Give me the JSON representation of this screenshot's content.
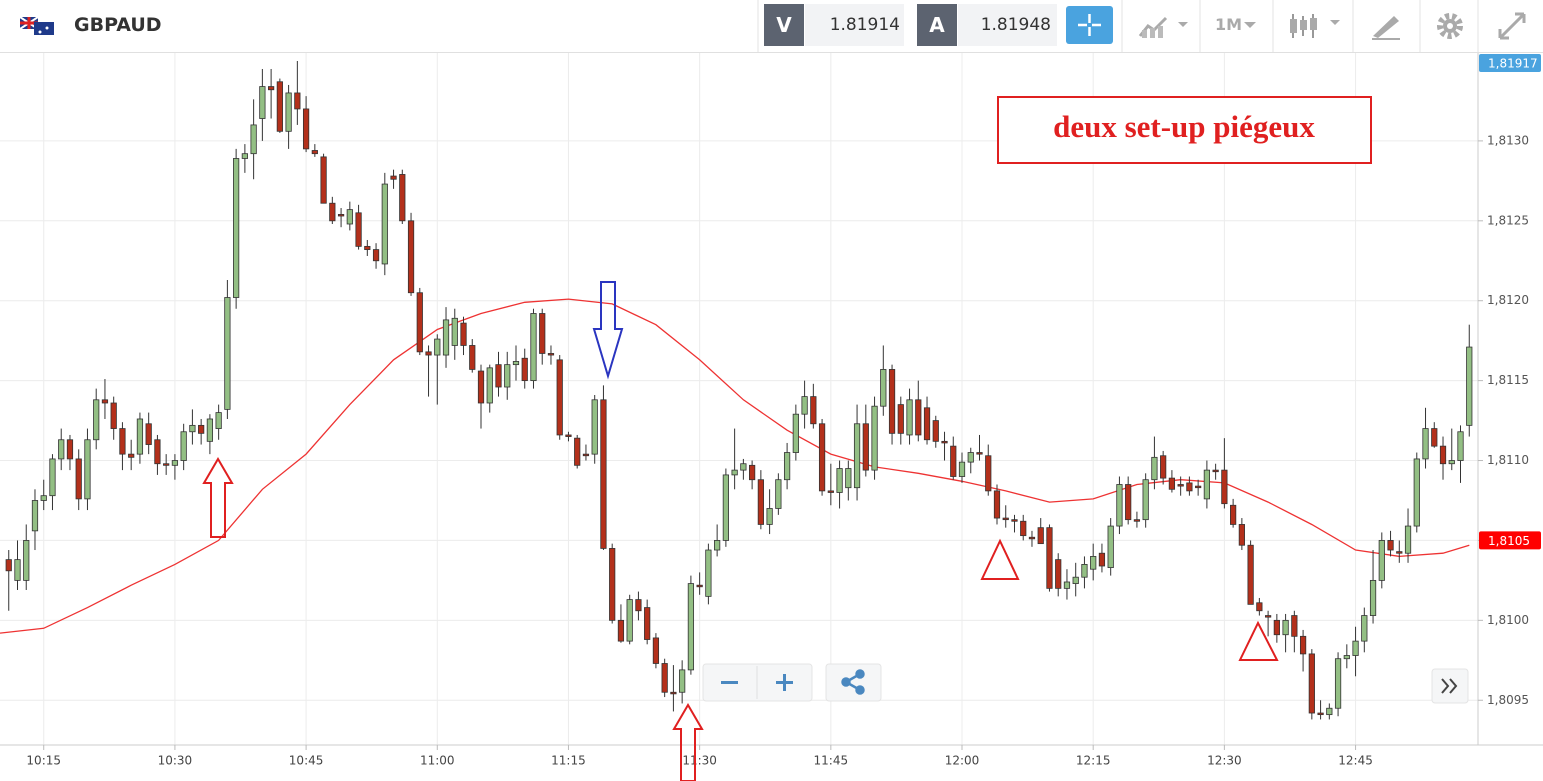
{
  "header": {
    "symbol": "GBPAUD",
    "bid_label": "V",
    "bid": 1.81914,
    "ask_label": "A",
    "ask": 1.81948,
    "timeframe": "1M"
  },
  "chart_data": {
    "type": "candlestick",
    "annotation": "deux set-up piégeux",
    "x": [
      "10:11",
      "10:12",
      "10:13",
      "10:14",
      "10:15",
      "10:16",
      "10:17",
      "10:18",
      "10:19",
      "10:20",
      "10:21",
      "10:22",
      "10:23",
      "10:24",
      "10:25",
      "10:26",
      "10:27",
      "10:28",
      "10:29",
      "10:30",
      "10:31",
      "10:32",
      "10:33",
      "10:34",
      "10:35",
      "10:36",
      "10:37",
      "10:38",
      "10:39",
      "10:40",
      "10:41",
      "10:42",
      "10:43",
      "10:44",
      "10:45",
      "10:46",
      "10:47",
      "10:48",
      "10:49",
      "10:50",
      "10:51",
      "10:52",
      "10:53",
      "10:54",
      "10:55",
      "10:56",
      "10:57",
      "10:58",
      "10:59",
      "11:00",
      "11:01",
      "11:02",
      "11:03",
      "11:04",
      "11:05",
      "11:06",
      "11:07",
      "11:08",
      "11:09",
      "11:10",
      "11:11",
      "11:12",
      "11:13",
      "11:14",
      "11:15",
      "11:16",
      "11:17",
      "11:18",
      "11:19",
      "11:20",
      "11:21",
      "11:22",
      "11:23",
      "11:24",
      "11:25",
      "11:26",
      "11:27",
      "11:28",
      "11:29",
      "11:30",
      "11:31",
      "11:32",
      "11:33",
      "11:34",
      "11:35",
      "11:36",
      "11:37",
      "11:38",
      "11:39",
      "11:40",
      "11:41",
      "11:42",
      "11:43",
      "11:44",
      "11:45",
      "11:46",
      "11:47",
      "11:48",
      "11:49",
      "11:50",
      "11:51",
      "11:52",
      "11:53",
      "11:54",
      "11:55",
      "11:56",
      "11:57",
      "11:58",
      "11:59",
      "12:00",
      "12:01",
      "12:02",
      "12:03",
      "12:04",
      "12:05",
      "12:06",
      "12:07",
      "12:08",
      "12:09",
      "12:10",
      "12:11",
      "12:12",
      "12:13",
      "12:14",
      "12:15",
      "12:16",
      "12:17",
      "12:18",
      "12:19",
      "12:20",
      "12:21",
      "12:22",
      "12:23",
      "12:24",
      "12:25",
      "12:26",
      "12:27",
      "12:28",
      "12:29",
      "12:30",
      "12:31",
      "12:32",
      "12:33",
      "12:34",
      "12:35",
      "12:36",
      "12:37",
      "12:38",
      "12:39",
      "12:40",
      "12:41",
      "12:42",
      "12:43",
      "12:44",
      "12:45",
      "12:46",
      "12:47",
      "12:48",
      "12:49",
      "12:50",
      "12:51",
      "12:52",
      "12:53",
      "12:54",
      "12:55",
      "12:56",
      "12:57",
      "12:58"
    ],
    "open": [
      1.81038,
      1.81025,
      1.81025,
      1.81056,
      1.81075,
      1.81078,
      1.81101,
      1.81113,
      1.81101,
      1.81076,
      1.81113,
      1.81138,
      1.81136,
      1.8112,
      1.81104,
      1.81104,
      1.81123,
      1.81113,
      1.81098,
      1.81097,
      1.811,
      1.81118,
      1.81122,
      1.81112,
      1.8112,
      1.81132,
      1.81202,
      1.81289,
      1.81292,
      1.81314,
      1.81334,
      1.81337,
      1.81306,
      1.8133,
      1.8132,
      1.81294,
      1.8129,
      1.81261,
      1.81254,
      1.81248,
      1.81255,
      1.81234,
      1.81232,
      1.81223,
      1.81278,
      1.81279,
      1.8125,
      1.81205,
      1.81168,
      1.81166,
      1.81166,
      1.81172,
      1.81186,
      1.81172,
      1.81156,
      1.81136,
      1.8116,
      1.81146,
      1.8116,
      1.81164,
      1.8115,
      1.81192,
      1.81167,
      1.81163,
      1.81116,
      1.81114,
      1.81104,
      1.81104,
      1.81138,
      1.81045,
      1.81,
      1.80987,
      1.81013,
      1.81008,
      1.80989,
      1.80973,
      1.80955,
      1.80955,
      1.80969,
      1.81022,
      1.81015,
      1.81044,
      1.8105,
      1.81091,
      1.81094,
      1.81097,
      1.81088,
      1.8106,
      1.8107,
      1.81088,
      1.81105,
      1.81129,
      1.8114,
      1.81123,
      1.81081,
      1.8108,
      1.81083,
      1.81083,
      1.81123,
      1.81094,
      1.81134,
      1.81157,
      1.81135,
      1.81116,
      1.81138,
      1.81133,
      1.81125,
      1.81112,
      1.81109,
      1.8109,
      1.81099,
      1.81105,
      1.81103,
      1.81081,
      1.81064,
      1.81063,
      1.81062,
      1.81052,
      1.81058,
      1.81058,
      1.81038,
      1.8102,
      1.81023,
      1.81027,
      1.81032,
      1.81042,
      1.81033,
      1.81059,
      1.81085,
      1.81063,
      1.81063,
      1.81088,
      1.81103,
      1.81089,
      1.81085,
      1.81086,
      1.81084,
      1.81076,
      1.81094,
      1.81094,
      1.81072,
      1.8106,
      1.81047,
      1.81011,
      1.81003,
      1.81,
      1.80991,
      1.81003,
      1.8099,
      1.80979,
      1.80942,
      1.80941,
      1.80945,
      1.80976,
      1.80978,
      1.80987,
      1.81003,
      1.81025,
      1.8105,
      1.81043,
      1.81042,
      1.81059,
      1.81101,
      1.8112,
      1.81109,
      1.81098,
      1.811,
      1.81122
    ],
    "high": [
      1.81044,
      1.8105,
      1.8106,
      1.81082,
      1.81088,
      1.81104,
      1.8112,
      1.81116,
      1.81107,
      1.8112,
      1.81145,
      1.81151,
      1.8114,
      1.81124,
      1.81113,
      1.8113,
      1.8113,
      1.81116,
      1.81104,
      1.81104,
      1.81123,
      1.81132,
      1.81126,
      1.81129,
      1.81135,
      1.81213,
      1.81295,
      1.81298,
      1.81326,
      1.81345,
      1.81345,
      1.81339,
      1.81335,
      1.8135,
      1.81328,
      1.81298,
      1.81292,
      1.81265,
      1.81258,
      1.81262,
      1.8126,
      1.81238,
      1.81236,
      1.8128,
      1.81282,
      1.81282,
      1.81255,
      1.81208,
      1.81172,
      1.81179,
      1.81196,
      1.81195,
      1.8119,
      1.81176,
      1.8116,
      1.8116,
      1.81168,
      1.81168,
      1.81172,
      1.8117,
      1.81195,
      1.81195,
      1.81172,
      1.81166,
      1.81118,
      1.81116,
      1.8111,
      1.81141,
      1.81147,
      1.81048,
      1.8101,
      1.81016,
      1.81018,
      1.81013,
      1.80992,
      1.80976,
      1.80972,
      1.80975,
      1.81028,
      1.8103,
      1.81048,
      1.8106,
      1.81095,
      1.8112,
      1.81101,
      1.811,
      1.81094,
      1.81082,
      1.81092,
      1.81111,
      1.81135,
      1.8115,
      1.81148,
      1.81126,
      1.81098,
      1.811,
      1.811,
      1.81135,
      1.81135,
      1.8114,
      1.81172,
      1.8116,
      1.8114,
      1.81145,
      1.8115,
      1.8114,
      1.81128,
      1.81118,
      1.81115,
      1.81105,
      1.81108,
      1.81116,
      1.8111,
      1.81085,
      1.81072,
      1.81066,
      1.81066,
      1.81056,
      1.81064,
      1.8106,
      1.81042,
      1.81032,
      1.81036,
      1.8104,
      1.81048,
      1.81048,
      1.81064,
      1.8109,
      1.8109,
      1.81068,
      1.81092,
      1.81115,
      1.81106,
      1.81094,
      1.8109,
      1.8109,
      1.81088,
      1.811,
      1.81098,
      1.81114,
      1.81076,
      1.81064,
      1.8105,
      1.81014,
      1.81006,
      1.81004,
      1.81004,
      1.81006,
      1.80994,
      1.80982,
      1.8095,
      1.80948,
      1.8098,
      1.80985,
      1.80996,
      1.81008,
      1.81044,
      1.81055,
      1.81056,
      1.8105,
      1.8107,
      1.81105,
      1.81133,
      1.81124,
      1.81115,
      1.8112,
      1.81122,
      1.81185
    ],
    "low": [
      1.81006,
      1.81019,
      1.81019,
      1.81044,
      1.81069,
      1.81069,
      1.81094,
      1.81094,
      1.81069,
      1.81069,
      1.81107,
      1.81126,
      1.81113,
      1.81094,
      1.81094,
      1.81098,
      1.81104,
      1.81091,
      1.81091,
      1.81088,
      1.81094,
      1.8111,
      1.8111,
      1.81104,
      1.81113,
      1.81126,
      1.81195,
      1.8128,
      1.81276,
      1.813,
      1.81314,
      1.81305,
      1.81295,
      1.8131,
      1.81293,
      1.8129,
      1.81262,
      1.81248,
      1.81246,
      1.81244,
      1.81232,
      1.81228,
      1.8122,
      1.81216,
      1.8127,
      1.81248,
      1.81203,
      1.81166,
      1.8114,
      1.81135,
      1.81158,
      1.81163,
      1.81166,
      1.81155,
      1.8112,
      1.8113,
      1.8114,
      1.81138,
      1.8115,
      1.81145,
      1.81145,
      1.8116,
      1.8116,
      1.81113,
      1.81112,
      1.81095,
      1.811,
      1.81098,
      1.81044,
      1.80998,
      1.80986,
      1.80985,
      1.81,
      1.80985,
      1.8097,
      1.80952,
      1.80943,
      1.80948,
      1.80966,
      1.81016,
      1.8101,
      1.8104,
      1.81046,
      1.81082,
      1.81088,
      1.81082,
      1.81057,
      1.81054,
      1.81066,
      1.81082,
      1.811,
      1.8112,
      1.8112,
      1.81078,
      1.81072,
      1.8107,
      1.81075,
      1.81075,
      1.8109,
      1.81088,
      1.81128,
      1.8111,
      1.8111,
      1.8111,
      1.81112,
      1.8111,
      1.81108,
      1.811,
      1.81088,
      1.81086,
      1.81092,
      1.811,
      1.81078,
      1.8106,
      1.81058,
      1.81055,
      1.8105,
      1.81046,
      1.81048,
      1.81018,
      1.81015,
      1.81013,
      1.81015,
      1.8102,
      1.81025,
      1.8103,
      1.81028,
      1.81054,
      1.8106,
      1.81058,
      1.81058,
      1.81082,
      1.81085,
      1.8108,
      1.81078,
      1.81078,
      1.81078,
      1.8107,
      1.81088,
      1.8107,
      1.81058,
      1.81044,
      1.8101,
      1.81003,
      1.8099,
      1.80986,
      1.8098,
      1.8098,
      1.80968,
      1.80938,
      1.80938,
      1.80938,
      1.8094,
      1.8097,
      1.80965,
      1.8098,
      1.80998,
      1.8102,
      1.8104,
      1.81036,
      1.81036,
      1.81055,
      1.81095,
      1.81108,
      1.81088,
      1.81094,
      1.81086,
      1.81115
    ],
    "close": [
      1.81031,
      1.81038,
      1.8105,
      1.81075,
      1.81078,
      1.81101,
      1.81113,
      1.81101,
      1.81076,
      1.81113,
      1.81138,
      1.81136,
      1.8112,
      1.81104,
      1.81102,
      1.81126,
      1.8111,
      1.81098,
      1.81097,
      1.811,
      1.81118,
      1.81122,
      1.81117,
      1.81126,
      1.8113,
      1.81202,
      1.81289,
      1.81292,
      1.8131,
      1.81334,
      1.81332,
      1.81306,
      1.8133,
      1.8132,
      1.81295,
      1.81292,
      1.81261,
      1.8125,
      1.81253,
      1.81257,
      1.81234,
      1.81232,
      1.81225,
      1.81273,
      1.81276,
      1.8125,
      1.81205,
      1.81168,
      1.81166,
      1.81176,
      1.81188,
      1.81189,
      1.81172,
      1.81157,
      1.81136,
      1.81158,
      1.81146,
      1.8116,
      1.81162,
      1.8115,
      1.81192,
      1.81167,
      1.81166,
      1.81116,
      1.81115,
      1.81097,
      1.81103,
      1.81138,
      1.81045,
      1.81,
      1.80987,
      1.81013,
      1.81006,
      1.80988,
      1.80973,
      1.80955,
      1.80954,
      1.80969,
      1.81023,
      1.81021,
      1.81044,
      1.8105,
      1.81091,
      1.81094,
      1.81098,
      1.81088,
      1.8106,
      1.8107,
      1.81088,
      1.81105,
      1.81129,
      1.8114,
      1.81123,
      1.81081,
      1.8108,
      1.81095,
      1.81095,
      1.81123,
      1.81094,
      1.81134,
      1.81157,
      1.81117,
      1.81117,
      1.81138,
      1.81116,
      1.81113,
      1.81112,
      1.81111,
      1.8109,
      1.81099,
      1.81105,
      1.81104,
      1.81081,
      1.81064,
      1.81063,
      1.81062,
      1.81053,
      1.81051,
      1.81048,
      1.8102,
      1.8102,
      1.81024,
      1.81027,
      1.81035,
      1.8104,
      1.81034,
      1.81059,
      1.81085,
      1.81063,
      1.81062,
      1.81088,
      1.81102,
      1.81089,
      1.81082,
      1.81084,
      1.81081,
      1.81083,
      1.81094,
      1.81093,
      1.81073,
      1.8106,
      1.81047,
      1.8101,
      1.81006,
      1.81002,
      1.80991,
      1.81,
      1.8099,
      1.80979,
      1.80942,
      1.80941,
      1.80945,
      1.80976,
      1.80978,
      1.80987,
      1.81003,
      1.81025,
      1.8105,
      1.81044,
      1.81042,
      1.81059,
      1.81101,
      1.8112,
      1.81109,
      1.81098,
      1.811,
      1.81118,
      1.81171
    ],
    "up_color": "#93bf84",
    "down_color": "#b3301b",
    "wick_color": "#333333",
    "overlay": {
      "type": "line",
      "color": "#ee3333",
      "x": [
        "10:10",
        "10:15",
        "10:20",
        "10:25",
        "10:30",
        "10:35",
        "10:40",
        "10:45",
        "10:50",
        "10:55",
        "11:00",
        "11:05",
        "11:10",
        "11:15",
        "11:20",
        "11:25",
        "11:30",
        "11:35",
        "11:40",
        "11:45",
        "11:50",
        "11:55",
        "12:00",
        "12:05",
        "12:10",
        "12:15",
        "12:20",
        "12:25",
        "12:30",
        "12:35",
        "12:40",
        "12:45",
        "12:50",
        "12:55",
        "12:58"
      ],
      "values": [
        1.80992,
        1.80995,
        1.81008,
        1.81022,
        1.81035,
        1.8105,
        1.81082,
        1.81104,
        1.81135,
        1.81163,
        1.81182,
        1.81192,
        1.81199,
        1.81201,
        1.81198,
        1.81185,
        1.81163,
        1.81138,
        1.81119,
        1.81104,
        1.81096,
        1.81092,
        1.81087,
        1.81081,
        1.81074,
        1.81076,
        1.81085,
        1.81088,
        1.81086,
        1.81074,
        1.8106,
        1.81044,
        1.8104,
        1.81042,
        1.81047
      ]
    },
    "xlim": [
      "10:10",
      "12:59"
    ],
    "xticks": [
      "10:15",
      "10:30",
      "10:45",
      "11:00",
      "11:15",
      "11:30",
      "11:45",
      "12:00",
      "12:15",
      "12:30",
      "12:45"
    ],
    "ylim": [
      1.80922,
      1.81355
    ],
    "yticks": [
      {
        "value": 1.8095,
        "label": "1,8095"
      },
      {
        "value": 1.81,
        "label": "1,8100"
      },
      {
        "value": 1.8105,
        "label": "1,8105"
      },
      {
        "value": 1.811,
        "label": "1,8110"
      },
      {
        "value": 1.8115,
        "label": "1,8115"
      },
      {
        "value": 1.812,
        "label": "1,8120"
      },
      {
        "value": 1.8125,
        "label": "1,8125"
      },
      {
        "value": 1.813,
        "label": "1,8130"
      }
    ],
    "price_markers": [
      {
        "value": 1.81917,
        "label": "1,81917",
        "color": "#4aa3df"
      },
      {
        "value": 1.8105,
        "label": "1,8105",
        "color": "#ff0000"
      }
    ],
    "grid": true
  }
}
